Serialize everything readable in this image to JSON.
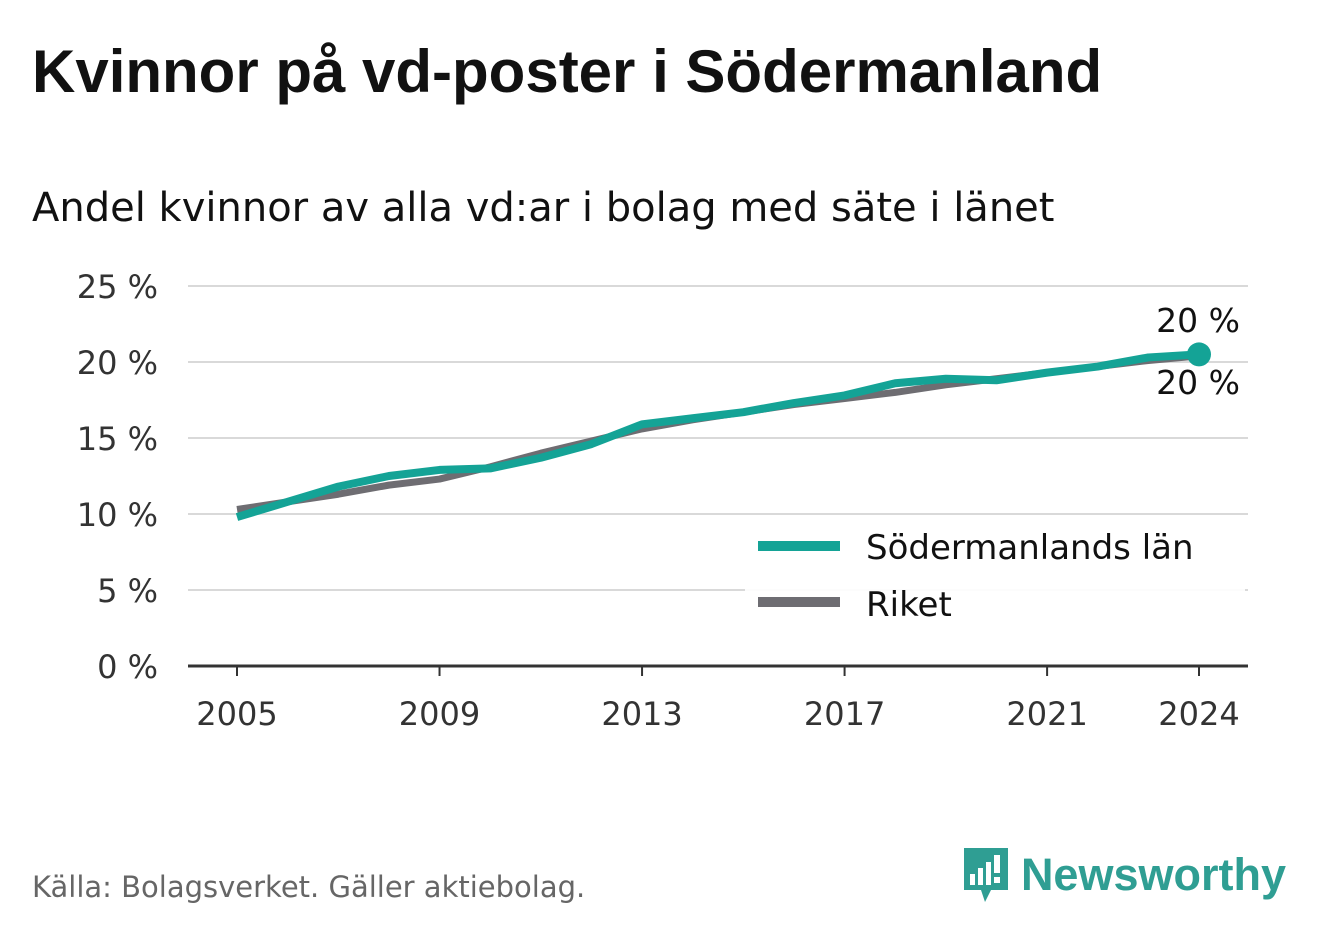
{
  "header": {
    "title": "Kvinnor på vd-poster i Södermanland",
    "subtitle": "Andel kvinnor av alla vd:ar i bolag med säte i länet"
  },
  "chart_data": {
    "type": "line",
    "x": [
      2005,
      2006,
      2007,
      2008,
      2009,
      2010,
      2011,
      2012,
      2013,
      2014,
      2015,
      2016,
      2017,
      2018,
      2019,
      2020,
      2021,
      2022,
      2023,
      2024
    ],
    "series": [
      {
        "name": "Södermanlands län",
        "color": "#14a396",
        "values": [
          9.8,
          10.8,
          11.8,
          12.5,
          12.9,
          13.0,
          13.7,
          14.6,
          15.9,
          16.3,
          16.7,
          17.3,
          17.8,
          18.6,
          18.9,
          18.8,
          19.3,
          19.7,
          20.3,
          20.5
        ]
      },
      {
        "name": "Riket",
        "color": "#6e6d72",
        "values": [
          10.3,
          10.8,
          11.3,
          11.9,
          12.3,
          13.1,
          14.0,
          14.8,
          15.6,
          16.2,
          16.7,
          17.2,
          17.6,
          18.0,
          18.5,
          18.9,
          19.3,
          19.7,
          20.1,
          20.4
        ]
      }
    ],
    "end_labels": [
      "20 %",
      "20 %"
    ],
    "y_ticks": [
      0,
      5,
      10,
      15,
      20,
      25
    ],
    "y_tick_labels": [
      "0 %",
      "5 %",
      "10 %",
      "15 %",
      "20 %",
      "25 %"
    ],
    "x_ticks": [
      2005,
      2009,
      2013,
      2017,
      2021,
      2024
    ],
    "x_tick_labels": [
      "2005",
      "2009",
      "2013",
      "2017",
      "2021",
      "2024"
    ],
    "ylim": [
      0,
      25
    ],
    "xlim": [
      2005,
      2024
    ],
    "grid": true,
    "legend_position": "bottom-right",
    "xlabel": "",
    "ylabel": ""
  },
  "footer": {
    "source": "Källa: Bolagsverket. Gäller aktiebolag.",
    "brand": "Newsworthy",
    "brand_color": "#2f9e93"
  }
}
